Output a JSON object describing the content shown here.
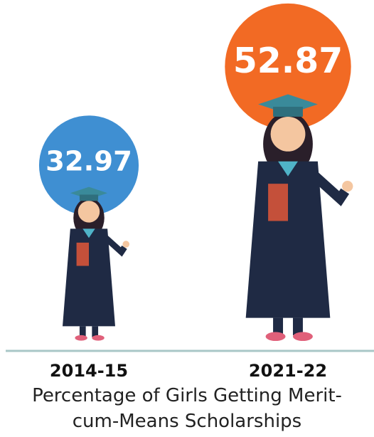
{
  "chart_data": {
    "type": "pictogram",
    "title": "Percentage of Girls Getting Merit-cum-Means Scholarships",
    "categories": [
      "2014-15",
      "2021-22"
    ],
    "values": [
      32.97,
      52.87
    ],
    "colors": [
      "#3f8fd2",
      "#f26a24"
    ]
  }
}
